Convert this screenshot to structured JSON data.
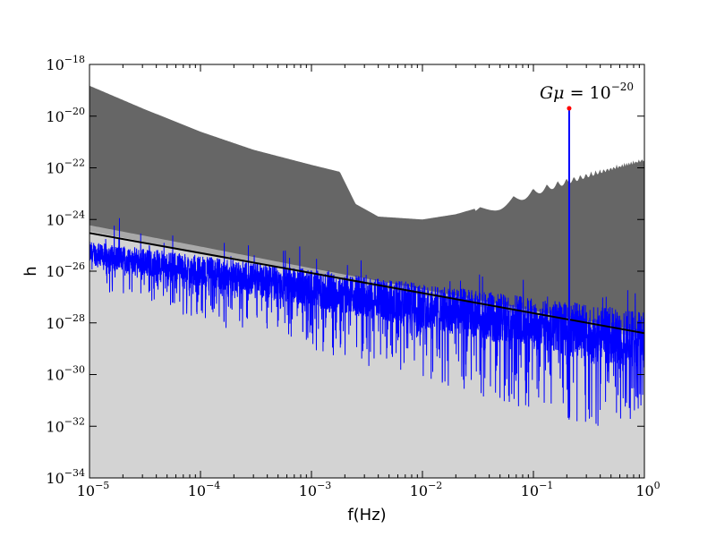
{
  "chart_data": {
    "type": "area",
    "xlabel": "f(Hz)",
    "ylabel": "h",
    "x_scale": "log",
    "y_scale": "log",
    "xlim": [
      1e-05,
      1
    ],
    "ylim": [
      1e-34,
      1e-18
    ],
    "x_ticks": [
      {
        "base": "10",
        "exp": "−5",
        "value": 1e-05
      },
      {
        "base": "10",
        "exp": "−4",
        "value": 0.0001
      },
      {
        "base": "10",
        "exp": "−3",
        "value": 0.001
      },
      {
        "base": "10",
        "exp": "−2",
        "value": 0.01
      },
      {
        "base": "10",
        "exp": "−1",
        "value": 0.1
      },
      {
        "base": "10",
        "exp": "0",
        "value": 1
      }
    ],
    "y_ticks": [
      {
        "base": "10",
        "exp": "−34",
        "value": 1e-34
      },
      {
        "base": "10",
        "exp": "−32",
        "value": 1e-32
      },
      {
        "base": "10",
        "exp": "−30",
        "value": 1e-30
      },
      {
        "base": "10",
        "exp": "−28",
        "value": 1e-28
      },
      {
        "base": "10",
        "exp": "−26",
        "value": 1e-26
      },
      {
        "base": "10",
        "exp": "−24",
        "value": 1e-24
      },
      {
        "base": "10",
        "exp": "−22",
        "value": 1e-22
      },
      {
        "base": "10",
        "exp": "−20",
        "value": 1e-20
      },
      {
        "base": "10",
        "exp": "−18",
        "value": 1e-18
      }
    ],
    "dark_region_upper_boundary": [
      [
        1e-05,
        1.5e-19
      ],
      [
        3e-05,
        2e-20
      ],
      [
        0.0001,
        2.5e-21
      ],
      [
        0.0003,
        5e-22
      ],
      [
        0.001,
        1.3e-22
      ],
      [
        0.0018,
        7e-23
      ],
      [
        0.0025,
        4e-24
      ],
      [
        0.004,
        1.3e-24
      ],
      [
        0.01,
        1e-24
      ],
      [
        0.02,
        1.6e-24
      ],
      [
        0.05,
        5e-24
      ],
      [
        0.1,
        1.6e-23
      ],
      [
        0.2,
        4e-23
      ],
      [
        0.5,
        1.2e-22
      ],
      [
        1,
        2.5e-22
      ]
    ],
    "dark_region_lower_boundary": [
      [
        1e-05,
        6e-25
      ],
      [
        0.0001,
        9e-26
      ],
      [
        0.001,
        1.3e-26
      ],
      [
        0.01,
        2e-27
      ],
      [
        0.1,
        3e-28
      ],
      [
        1,
        4.5e-29
      ]
    ],
    "dark_region_oscillation_start": 0.03,
    "mid_band_upper_boundary": [
      [
        1e-05,
        7e-25
      ],
      [
        1,
        5e-29
      ]
    ],
    "mid_band_lower_boundary": [
      [
        1e-05,
        3.5e-25
      ],
      [
        1,
        2.5e-29
      ]
    ],
    "light_region_upper_boundary": [
      [
        1e-05,
        3.5e-25
      ],
      [
        1,
        2.5e-29
      ]
    ],
    "reference_line": [
      [
        1e-05,
        3e-25
      ],
      [
        1,
        4e-29
      ]
    ],
    "noisy_series": {
      "color": "#0000ff",
      "mean_start": [
        1e-05,
        5e-26
      ],
      "mean_end": [
        1,
        2e-29
      ],
      "deep_dip_floor": [
        1,
        3e-33
      ]
    },
    "spike": {
      "f": 0.21,
      "h": 2e-20,
      "color": "#0000ff",
      "marker_color": "#ff0000",
      "label_lhs": "Gμ",
      "label_rhs_base": "10",
      "label_rhs_exp": "−20"
    },
    "colors": {
      "dark_region": "#666666",
      "mid_band": "#a9a9a9",
      "light_region": "#d3d3d3",
      "reference_line": "#000000",
      "series": "#0000ff"
    },
    "grid": false,
    "legend": "none"
  }
}
